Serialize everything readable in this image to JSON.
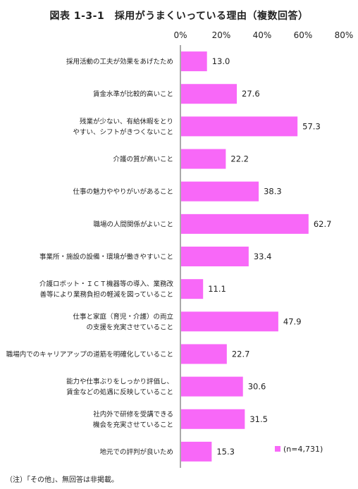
{
  "title": "図表 1-3-1　採用がうまくいっている理由（複数回答）",
  "footnote": "（注）「その他」、無回答は非掲載。",
  "legend_label": "(n=4,731)",
  "colors": {
    "bar": "#f868f8",
    "axis": "#555555"
  },
  "chart_data": {
    "type": "bar",
    "orientation": "horizontal",
    "title": "図表 1-3-1　採用がうまくいっている理由（複数回答）",
    "xlim": [
      0,
      80
    ],
    "ticks": [
      0,
      20,
      40,
      60,
      80
    ],
    "tick_labels": [
      "0%",
      "20%",
      "40%",
      "60%",
      "80%"
    ],
    "axis_position": "top",
    "grid": false,
    "legend": "bottom-right",
    "series": [
      {
        "name": "(n=4,731)",
        "values": [
          13.0,
          27.6,
          57.3,
          22.2,
          38.3,
          62.7,
          33.4,
          11.1,
          47.9,
          22.7,
          30.6,
          31.5,
          15.3
        ]
      }
    ],
    "value_labels": [
      "13.0",
      "27.6",
      "57.3",
      "22.2",
      "38.3",
      "62.7",
      "33.4",
      "11.1",
      "47.9",
      "22.7",
      "30.6",
      "31.5",
      "15.3"
    ],
    "categories": [
      [
        "採用活動の工夫が効果をあげたため"
      ],
      [
        "賃金水準が比較的高いこと"
      ],
      [
        "残業が少ない、有給休暇をとり",
        "やすい、シフトがきつくないこと"
      ],
      [
        "介護の質が高いこと"
      ],
      [
        "仕事の魅力ややりがいがあること"
      ],
      [
        "職場の人間関係がよいこと"
      ],
      [
        "事業所・施設の設備・環境が働きやすいこと"
      ],
      [
        "介護ロボット・ＩＣＴ機器等の導入、業務改",
        "善等により業務負担の軽減を図っていること"
      ],
      [
        "仕事と家庭（育児・介護）の両立",
        "の支援を充実させていること"
      ],
      [
        "職場内でのキャリアアップの道筋を明確化していること"
      ],
      [
        "能力や仕事ぶりをしっかり評価し、",
        "賃金などの処遇に反映していること"
      ],
      [
        "社内外で研修を受講できる",
        "機会を充実させていること"
      ],
      [
        "地元での評判が良いため"
      ]
    ]
  }
}
